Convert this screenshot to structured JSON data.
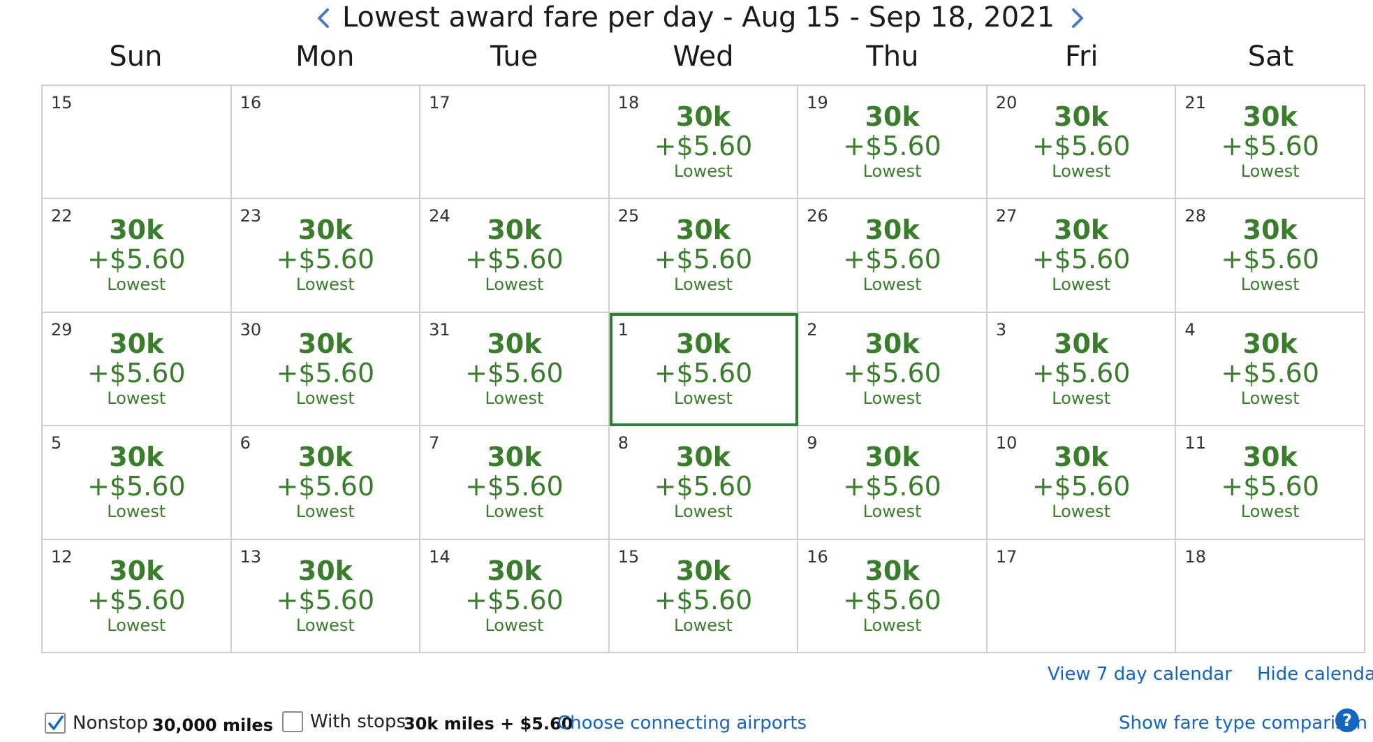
{
  "header": {
    "title": "Lowest award fare per day - Aug 15 - Sep 18, 2021",
    "prev_icon": "chevron-left-icon",
    "next_icon": "chevron-right-icon"
  },
  "weekdays": [
    "Sun",
    "Mon",
    "Tue",
    "Wed",
    "Thu",
    "Fri",
    "Sat"
  ],
  "colors": {
    "fare_green": "#3a7d2c",
    "selected_border": "#2e7d32",
    "link_blue": "#1565c0",
    "grid_border": "#cfcfcf"
  },
  "calendar": {
    "days": [
      {
        "day": "15",
        "miles": "",
        "tax": "",
        "label": ""
      },
      {
        "day": "16",
        "miles": "",
        "tax": "",
        "label": ""
      },
      {
        "day": "17",
        "miles": "",
        "tax": "",
        "label": ""
      },
      {
        "day": "18",
        "miles": "30k",
        "tax": "+$5.60",
        "label": "Lowest"
      },
      {
        "day": "19",
        "miles": "30k",
        "tax": "+$5.60",
        "label": "Lowest"
      },
      {
        "day": "20",
        "miles": "30k",
        "tax": "+$5.60",
        "label": "Lowest"
      },
      {
        "day": "21",
        "miles": "30k",
        "tax": "+$5.60",
        "label": "Lowest"
      },
      {
        "day": "22",
        "miles": "30k",
        "tax": "+$5.60",
        "label": "Lowest"
      },
      {
        "day": "23",
        "miles": "30k",
        "tax": "+$5.60",
        "label": "Lowest"
      },
      {
        "day": "24",
        "miles": "30k",
        "tax": "+$5.60",
        "label": "Lowest"
      },
      {
        "day": "25",
        "miles": "30k",
        "tax": "+$5.60",
        "label": "Lowest"
      },
      {
        "day": "26",
        "miles": "30k",
        "tax": "+$5.60",
        "label": "Lowest"
      },
      {
        "day": "27",
        "miles": "30k",
        "tax": "+$5.60",
        "label": "Lowest"
      },
      {
        "day": "28",
        "miles": "30k",
        "tax": "+$5.60",
        "label": "Lowest"
      },
      {
        "day": "29",
        "miles": "30k",
        "tax": "+$5.60",
        "label": "Lowest"
      },
      {
        "day": "30",
        "miles": "30k",
        "tax": "+$5.60",
        "label": "Lowest"
      },
      {
        "day": "31",
        "miles": "30k",
        "tax": "+$5.60",
        "label": "Lowest"
      },
      {
        "day": "1",
        "miles": "30k",
        "tax": "+$5.60",
        "label": "Lowest",
        "selected": true
      },
      {
        "day": "2",
        "miles": "30k",
        "tax": "+$5.60",
        "label": "Lowest"
      },
      {
        "day": "3",
        "miles": "30k",
        "tax": "+$5.60",
        "label": "Lowest"
      },
      {
        "day": "4",
        "miles": "30k",
        "tax": "+$5.60",
        "label": "Lowest"
      },
      {
        "day": "5",
        "miles": "30k",
        "tax": "+$5.60",
        "label": "Lowest"
      },
      {
        "day": "6",
        "miles": "30k",
        "tax": "+$5.60",
        "label": "Lowest"
      },
      {
        "day": "7",
        "miles": "30k",
        "tax": "+$5.60",
        "label": "Lowest"
      },
      {
        "day": "8",
        "miles": "30k",
        "tax": "+$5.60",
        "label": "Lowest"
      },
      {
        "day": "9",
        "miles": "30k",
        "tax": "+$5.60",
        "label": "Lowest"
      },
      {
        "day": "10",
        "miles": "30k",
        "tax": "+$5.60",
        "label": "Lowest"
      },
      {
        "day": "11",
        "miles": "30k",
        "tax": "+$5.60",
        "label": "Lowest"
      },
      {
        "day": "12",
        "miles": "30k",
        "tax": "+$5.60",
        "label": "Lowest"
      },
      {
        "day": "13",
        "miles": "30k",
        "tax": "+$5.60",
        "label": "Lowest"
      },
      {
        "day": "14",
        "miles": "30k",
        "tax": "+$5.60",
        "label": "Lowest"
      },
      {
        "day": "15",
        "miles": "30k",
        "tax": "+$5.60",
        "label": "Lowest"
      },
      {
        "day": "16",
        "miles": "30k",
        "tax": "+$5.60",
        "label": "Lowest"
      },
      {
        "day": "17",
        "miles": "",
        "tax": "",
        "label": ""
      },
      {
        "day": "18",
        "miles": "",
        "tax": "",
        "label": ""
      }
    ]
  },
  "links": {
    "view_7_day": "View 7 day calendar",
    "hide_calendar": "Hide calendar",
    "choose_connecting": "Choose connecting airports",
    "show_fare_comparison": "Show fare type comparison",
    "help_icon": "question-mark-icon",
    "help_glyph": "?"
  },
  "filters": {
    "nonstop": {
      "label": "Nonstop",
      "value": "30,000 miles",
      "checked": true
    },
    "with_stops": {
      "label": "With stops",
      "value": "30k miles + $5.60",
      "checked": false
    }
  }
}
